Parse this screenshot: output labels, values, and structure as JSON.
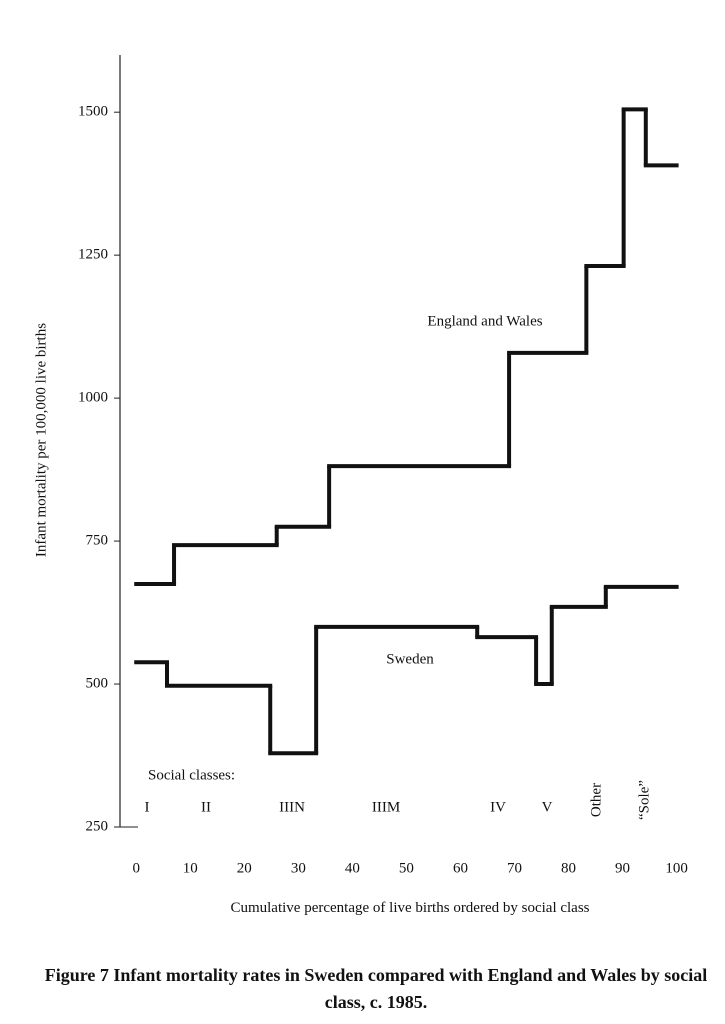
{
  "chart_data": {
    "type": "step",
    "title": "Figure 7  Infant mortality rates in Sweden compared with England and Wales by social class, c. 1985.",
    "y_label": "Infant mortality per 100,000 live births",
    "x_label": "Cumulative percentage of live births ordered by social class",
    "xlim": [
      -3,
      101
    ],
    "ylim": [
      250,
      1600
    ],
    "xticks": [
      0,
      10,
      20,
      30,
      40,
      50,
      60,
      70,
      80,
      90,
      100
    ],
    "yticks": [
      250,
      500,
      750,
      1000,
      1250,
      1500
    ],
    "series": [
      {
        "name": "England and Wales",
        "color": "#111111",
        "edges": [
          0,
          7,
          26,
          35.7,
          69,
          83.3,
          90.2,
          94.3,
          100
        ],
        "values": [
          675,
          743,
          775,
          881,
          1079,
          1231,
          1505,
          1407
        ]
      },
      {
        "name": "Sweden",
        "color": "#111111",
        "edges": [
          0,
          5.7,
          24.8,
          33.3,
          63.1,
          74,
          76.9,
          86.9,
          100
        ],
        "values": [
          538,
          497,
          379,
          600,
          582,
          500,
          635,
          670
        ]
      }
    ],
    "class_labels_title": "Social classes:",
    "class_labels": [
      "I",
      "II",
      "IIIN",
      "IIIM",
      "IV",
      "V",
      "Other",
      "“Sole”"
    ]
  }
}
